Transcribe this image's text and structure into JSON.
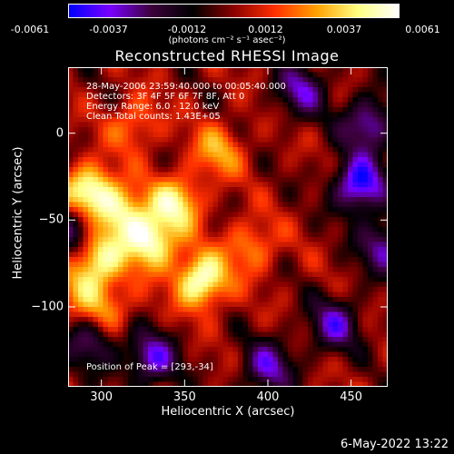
{
  "colorbar": {
    "tick_labels": [
      "-0.0061",
      "-0.0037",
      "-0.0012",
      "0.0012",
      "0.0037",
      "0.0061"
    ],
    "unit_label": "(photons cm⁻² s⁻¹ asec⁻²)",
    "colors": [
      "#0000ff",
      "#7a00ff",
      "#3c003c",
      "#000000",
      "#8b0000",
      "#ff3000",
      "#ffa000",
      "#ffff80",
      "#ffffff"
    ]
  },
  "chart_data": {
    "type": "heatmap",
    "title": "Reconstructed RHESSI Image",
    "xlabel": "Heliocentric X (arcsec)",
    "ylabel": "Heliocentric Y (arcsec)",
    "xlim": [
      280,
      472
    ],
    "ylim": [
      -146,
      38
    ],
    "xticks": [
      300,
      350,
      400,
      450
    ],
    "yticks": [
      0,
      -50,
      -100
    ],
    "value_range": [
      -0.0061,
      0.0061
    ],
    "info_lines": [
      "28-May-2006 23:59:40.000 to 00:05:40.000",
      "Detectors: 3F 4F 5F 6F 7F 8F, Att 0",
      "Energy Range: 6.0 - 12.0 keV",
      "Clean     Total counts: 1.43E+05"
    ],
    "peak_label": "Position of Peak = [293,-34]",
    "peak": [
      293,
      -34
    ],
    "bright_sources": [
      {
        "x": 293,
        "y": -34,
        "v": 0.0061
      },
      {
        "x": 330,
        "y": -63,
        "v": 0.0055
      },
      {
        "x": 313,
        "y": -47,
        "v": 0.0045
      },
      {
        "x": 345,
        "y": -40,
        "v": 0.0045
      },
      {
        "x": 360,
        "y": -85,
        "v": 0.006
      },
      {
        "x": 298,
        "y": -70,
        "v": 0.004
      },
      {
        "x": 302,
        "y": -103,
        "v": 0.0035
      },
      {
        "x": 370,
        "y": -10,
        "v": 0.003
      },
      {
        "x": 390,
        "y": -65,
        "v": 0.0028
      },
      {
        "x": 320,
        "y": 5,
        "v": 0.0025
      },
      {
        "x": 290,
        "y": -85,
        "v": 0.003
      }
    ],
    "dim_regions": [
      {
        "x": 455,
        "y": -30,
        "v": -0.006
      },
      {
        "x": 460,
        "y": 5,
        "v": -0.0045
      },
      {
        "x": 470,
        "y": -65,
        "v": -0.004
      },
      {
        "x": 330,
        "y": -130,
        "v": -0.0045
      },
      {
        "x": 285,
        "y": -55,
        "v": -0.004
      },
      {
        "x": 440,
        "y": -110,
        "v": -0.004
      },
      {
        "x": 295,
        "y": -118,
        "v": -0.004
      },
      {
        "x": 420,
        "y": 25,
        "v": -0.0038
      },
      {
        "x": 400,
        "y": -135,
        "v": -0.004
      }
    ]
  },
  "datestamp": "6-May-2022 13:22"
}
